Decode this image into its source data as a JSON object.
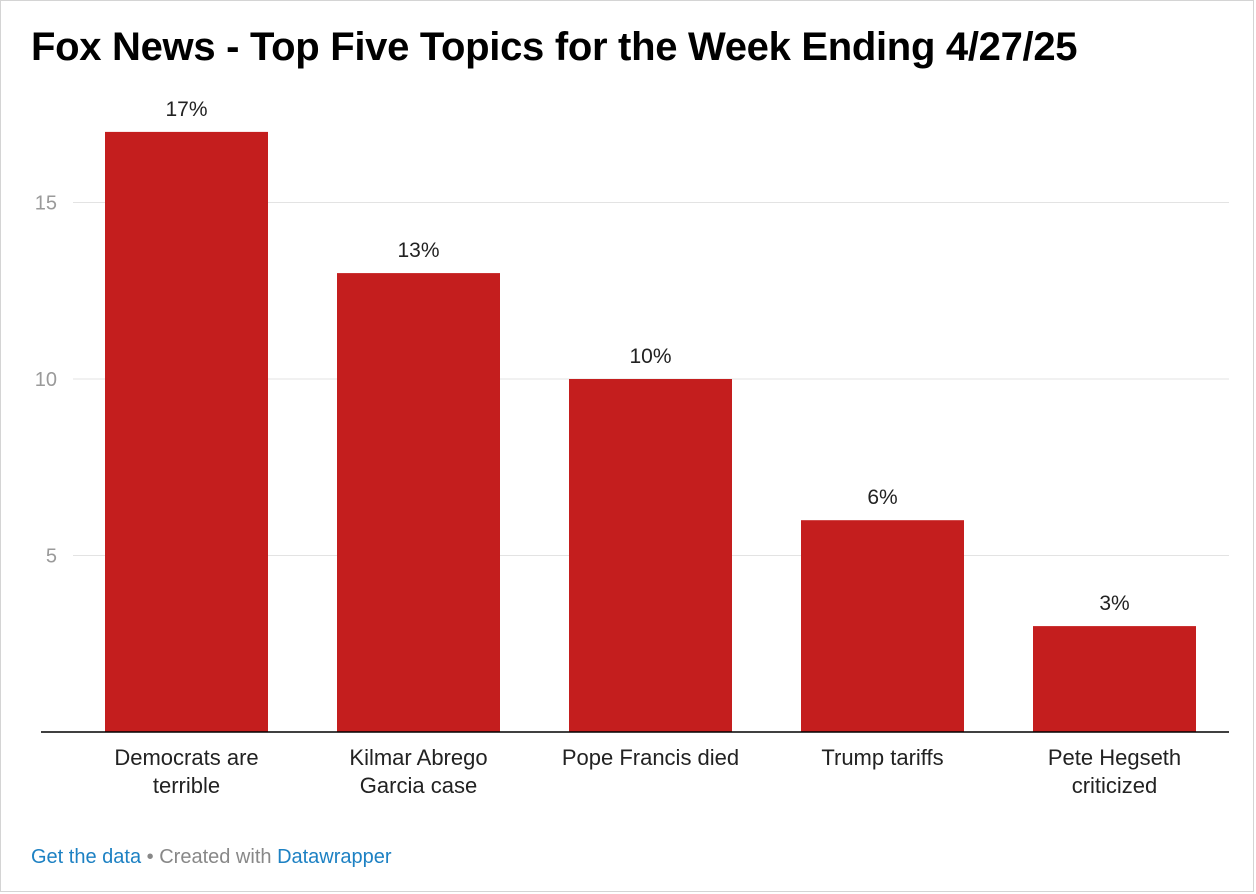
{
  "chart_data": {
    "type": "bar",
    "title": "Fox News - Top Five Topics for the Week Ending 4/27/25",
    "categories": [
      [
        "Democrats are",
        "terrible"
      ],
      [
        "Kilmar Abrego",
        "Garcia case"
      ],
      [
        "Pope Francis died"
      ],
      [
        "Trump tariffs"
      ],
      [
        "Pete Hegseth",
        "criticized"
      ]
    ],
    "values": [
      17,
      13,
      10,
      6,
      3
    ],
    "value_labels": [
      "17%",
      "13%",
      "10%",
      "6%",
      "3%"
    ],
    "yticks": [
      5,
      10,
      15
    ],
    "ylim": [
      0,
      17
    ],
    "grid": true,
    "bar_color": "#c41e1e"
  },
  "footer": {
    "get_data": "Get the data",
    "separator": "•",
    "created_with": "Created with",
    "datawrapper": "Datawrapper"
  },
  "colors": {
    "link": "#1d81c3",
    "grid": "#e3e3e3",
    "axis": "#000000",
    "tick_label": "#9a9a9a"
  }
}
